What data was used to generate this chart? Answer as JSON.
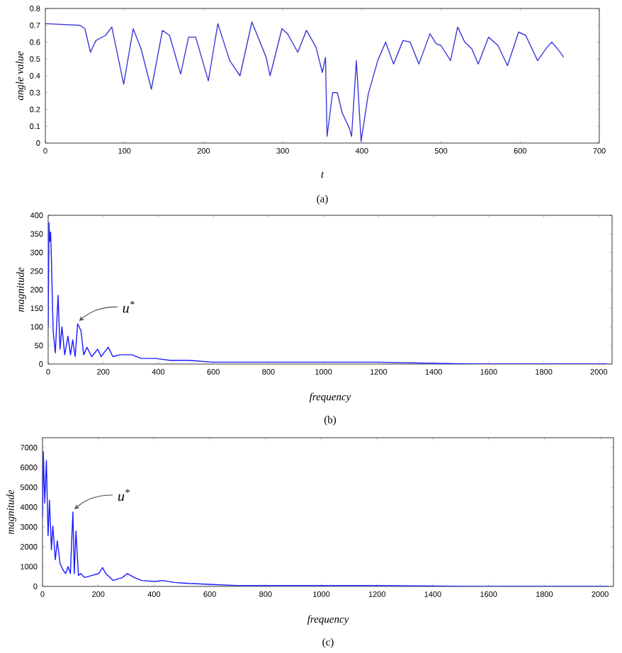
{
  "chart_data": [
    {
      "type": "line",
      "xlabel": "t",
      "ylabel": "angle value",
      "xlim": [
        0,
        700
      ],
      "ylim": [
        0,
        0.8
      ],
      "xticks": [
        0,
        100,
        200,
        300,
        400,
        500,
        600,
        700
      ],
      "yticks": [
        0,
        0.1,
        0.2,
        0.3,
        0.4,
        0.5,
        0.6,
        0.7,
        0.8
      ],
      "color": "#3a3ad8",
      "annotations": [
        "(a)"
      ],
      "x": [
        0,
        44,
        50,
        57,
        64,
        76,
        84,
        99,
        111,
        121,
        134,
        148,
        157,
        171,
        181,
        190,
        206,
        218,
        233,
        246,
        261,
        279,
        284,
        299,
        306,
        319,
        330,
        342,
        350,
        354,
        356,
        363,
        369,
        375,
        384,
        387,
        393,
        399,
        408,
        420,
        430,
        440,
        452,
        461,
        472,
        486,
        494,
        500,
        512,
        521,
        530,
        539,
        547,
        560,
        572,
        584,
        598,
        607,
        622,
        634,
        640,
        649,
        655
      ],
      "values": [
        0.71,
        0.7,
        0.68,
        0.54,
        0.61,
        0.64,
        0.69,
        0.35,
        0.68,
        0.56,
        0.32,
        0.67,
        0.64,
        0.41,
        0.63,
        0.63,
        0.37,
        0.71,
        0.49,
        0.4,
        0.72,
        0.51,
        0.4,
        0.68,
        0.65,
        0.54,
        0.67,
        0.57,
        0.42,
        0.51,
        0.04,
        0.3,
        0.3,
        0.18,
        0.09,
        0.04,
        0.49,
        0.01,
        0.29,
        0.49,
        0.6,
        0.47,
        0.61,
        0.6,
        0.47,
        0.65,
        0.59,
        0.58,
        0.49,
        0.69,
        0.6,
        0.56,
        0.47,
        0.63,
        0.58,
        0.46,
        0.66,
        0.64,
        0.49,
        0.57,
        0.6,
        0.55,
        0.51
      ]
    },
    {
      "type": "line",
      "xlabel": "frequency",
      "ylabel": "magnitude",
      "xlim": [
        0,
        2048
      ],
      "ylim": [
        0,
        400
      ],
      "xticks": [
        0,
        200,
        400,
        600,
        800,
        1000,
        1200,
        1400,
        1600,
        1800,
        2000
      ],
      "yticks": [
        0,
        50,
        100,
        150,
        200,
        250,
        300,
        350,
        400
      ],
      "color": "#1a1aff",
      "annotations": [
        {
          "text": "u$^{*}$",
          "x": 107,
          "y": 108
        },
        "(b)"
      ],
      "x": [
        0,
        3,
        6,
        9,
        12,
        18,
        26,
        36,
        43,
        50,
        60,
        72,
        81,
        89,
        98,
        107,
        119,
        129,
        141,
        158,
        180,
        192,
        218,
        235,
        261,
        304,
        338,
        390,
        442,
        510,
        596,
        682,
        854,
        1198,
        1541,
        2030
      ],
      "values": [
        100,
        380,
        330,
        355,
        275,
        90,
        30,
        185,
        40,
        100,
        25,
        75,
        25,
        65,
        20,
        108,
        90,
        25,
        45,
        20,
        40,
        20,
        45,
        20,
        25,
        25,
        15,
        15,
        10,
        10,
        5,
        5,
        5,
        5,
        0,
        0
      ]
    },
    {
      "type": "line",
      "xlabel": "frequency",
      "ylabel": "magnitude",
      "xlim": [
        0,
        2048
      ],
      "ylim": [
        0,
        7500
      ],
      "xticks": [
        0,
        200,
        400,
        600,
        800,
        1000,
        1200,
        1400,
        1600,
        1800,
        2000
      ],
      "yticks": [
        0,
        1000,
        2000,
        3000,
        4000,
        5000,
        6000,
        7000
      ],
      "color": "#1a1aff",
      "annotations": [
        {
          "text": "u$^{*}$",
          "x": 109,
          "y": 3750
        },
        "(c)"
      ],
      "x": [
        0,
        3,
        8,
        14,
        20,
        25,
        32,
        37,
        46,
        53,
        63,
        75,
        83,
        92,
        100,
        109,
        114,
        120,
        129,
        137,
        151,
        176,
        202,
        215,
        227,
        253,
        287,
        304,
        329,
        355,
        405,
        431,
        473,
        524,
        609,
        694,
        863,
        1203,
        1542,
        2030
      ],
      "values": [
        3500,
        6800,
        4200,
        6350,
        2550,
        4350,
        1850,
        3050,
        1350,
        2300,
        1150,
        800,
        650,
        1000,
        650,
        3750,
        650,
        2800,
        550,
        650,
        450,
        550,
        650,
        950,
        650,
        300,
        450,
        650,
        450,
        300,
        250,
        300,
        200,
        150,
        100,
        50,
        50,
        50,
        0,
        0
      ]
    }
  ]
}
